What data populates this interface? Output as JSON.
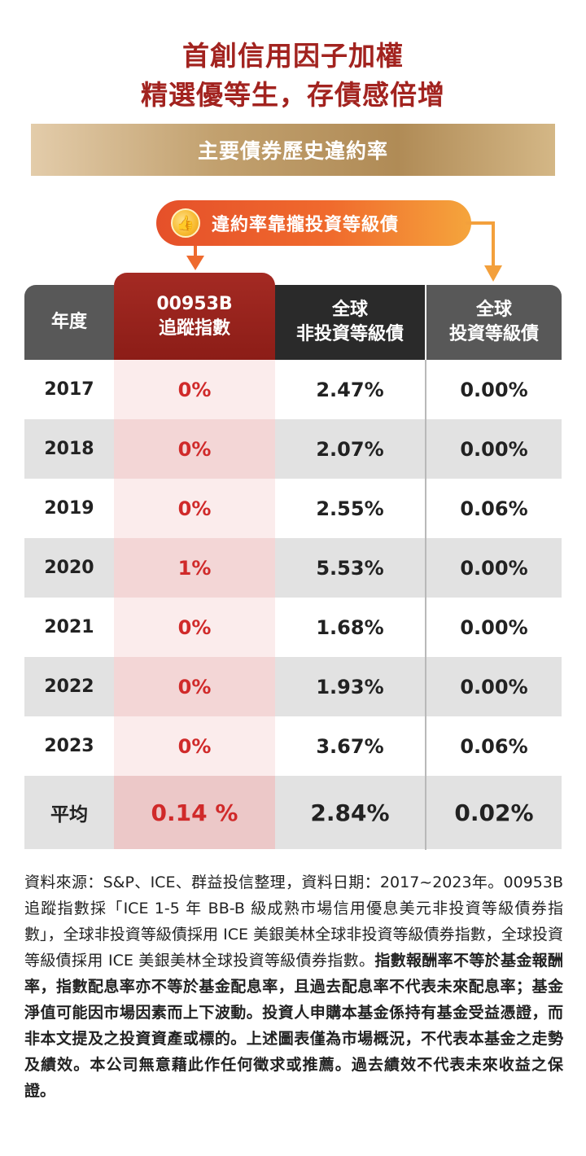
{
  "title": {
    "line1": "首創信用因子加權",
    "line2": "精選優等生，存債感倍增"
  },
  "subtitle": "主要債券歷史違約率",
  "callout": {
    "text": "違約率靠攏投資等級債",
    "icon": "thumbs-up-medal-icon"
  },
  "table": {
    "headers": {
      "year": "年度",
      "fund_line1": "00953B",
      "fund_line2": "追蹤指數",
      "nonig_line1": "全球",
      "nonig_line2": "非投資等級債",
      "ig_line1": "全球",
      "ig_line2": "投資等級債"
    },
    "rows": [
      {
        "year": "2017",
        "fund": "0%",
        "nonig": "2.47%",
        "ig": "0.00%"
      },
      {
        "year": "2018",
        "fund": "0%",
        "nonig": "2.07%",
        "ig": "0.00%"
      },
      {
        "year": "2019",
        "fund": "0%",
        "nonig": "2.55%",
        "ig": "0.06%"
      },
      {
        "year": "2020",
        "fund": "1%",
        "nonig": "5.53%",
        "ig": "0.00%"
      },
      {
        "year": "2021",
        "fund": "0%",
        "nonig": "1.68%",
        "ig": "0.00%"
      },
      {
        "year": "2022",
        "fund": "0%",
        "nonig": "1.93%",
        "ig": "0.00%"
      },
      {
        "year": "2023",
        "fund": "0%",
        "nonig": "3.67%",
        "ig": "0.06%"
      }
    ],
    "average": {
      "label": "平均",
      "fund": "0.14 %",
      "nonig": "2.84%",
      "ig": "0.02%"
    }
  },
  "footnote": {
    "normal": "資料來源：S&P、ICE、群益投信整理，資料日期：2017~2023年。00953B 追蹤指數採「ICE 1-5 年 BB-B 級成熟市場信用優息美元非投資等級債券指數」，全球非投資等級債採用 ICE 美銀美林全球非投資等級債券指數，全球投資等級債採用 ICE 美銀美林全球投資等級債券指數。",
    "bold": "指數報酬率不等於基金報酬率，指數配息率亦不等於基金配息率，且過去配息率不代表未來配息率；基金淨值可能因市場因素而上下波動。投資人申購本基金係持有基金受益憑證，而非本文提及之投資資產或標的。上述圖表僅為市場概況，不代表本基金之走勢及績效。本公司無意藉此作任何徵求或推薦。過去績效不代表未來收益之保證。"
  },
  "colors": {
    "title_red": "#a2231f",
    "fund_red": "#d02a2a",
    "header_gray": "#585858",
    "header_dark": "#2a2a2a",
    "callout_orange": "#f06a2d",
    "gold": "#c2a16f"
  }
}
